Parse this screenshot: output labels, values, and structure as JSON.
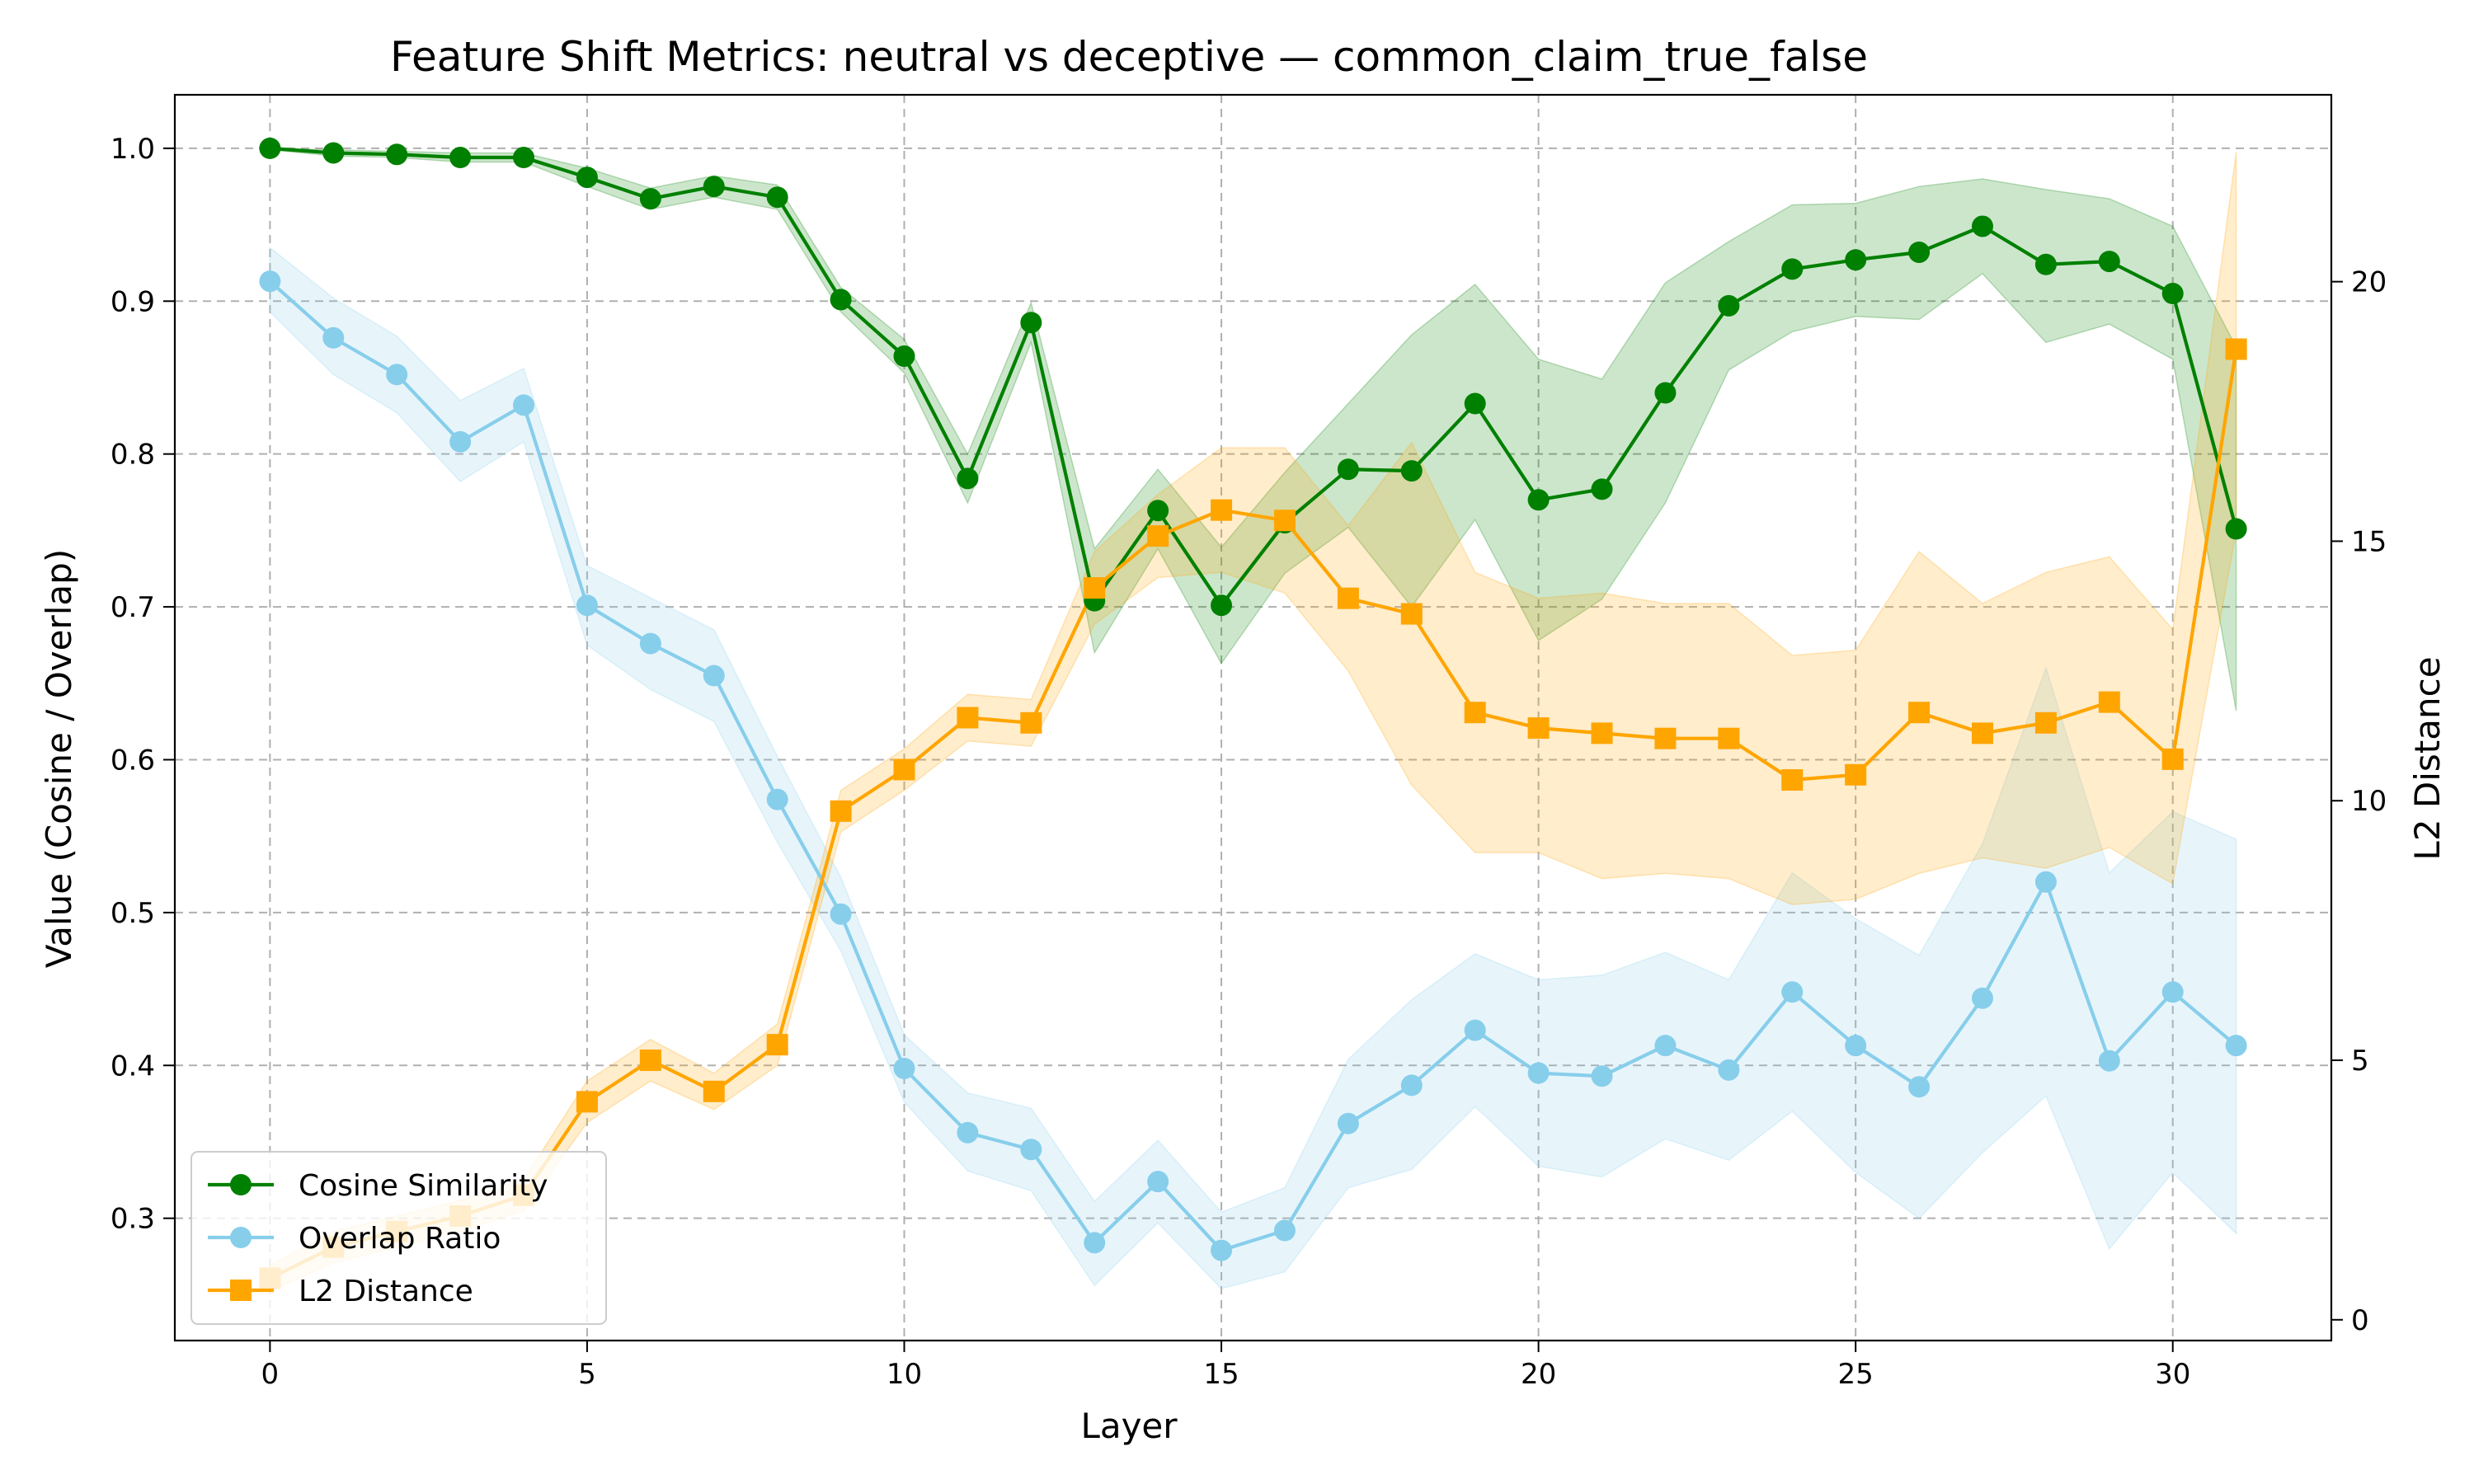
{
  "chart_data": {
    "type": "line",
    "title": "Feature Shift Metrics: neutral vs deceptive — common_claim_true_false",
    "xlabel": "Layer",
    "ylabel_left": "Value (Cosine / Overlap)",
    "ylabel_right": "L2 Distance",
    "xlim": [
      -1.5,
      32.5
    ],
    "ylim_left": [
      0.22,
      1.035
    ],
    "ylim_right": [
      -0.4,
      23.6
    ],
    "x_ticks": [
      0,
      5,
      10,
      15,
      20,
      25,
      30
    ],
    "y_ticks_left": [
      0.3,
      0.4,
      0.5,
      0.6,
      0.7,
      0.8,
      0.9,
      1.0
    ],
    "y_ticks_right": [
      0,
      5,
      10,
      15,
      20
    ],
    "grid": true,
    "legend_position": "lower-left",
    "x": [
      0,
      1,
      2,
      3,
      4,
      5,
      6,
      7,
      8,
      9,
      10,
      11,
      12,
      13,
      14,
      15,
      16,
      17,
      18,
      19,
      20,
      21,
      22,
      23,
      24,
      25,
      26,
      27,
      28,
      29,
      30,
      31
    ],
    "series": [
      {
        "name": "Cosine Similarity",
        "axis": "left",
        "color": "#008000",
        "marker": "circle",
        "values": [
          1.0,
          0.997,
          0.996,
          0.994,
          0.994,
          0.981,
          0.967,
          0.975,
          0.968,
          0.901,
          0.864,
          0.784,
          0.886,
          0.704,
          0.763,
          0.701,
          0.755,
          0.79,
          0.789,
          0.833,
          0.77,
          0.777,
          0.84,
          0.897,
          0.921,
          0.927,
          0.932,
          0.949,
          0.924,
          0.926,
          0.905,
          0.751
        ],
        "lower": [
          0.999,
          0.995,
          0.994,
          0.991,
          0.991,
          0.975,
          0.96,
          0.968,
          0.96,
          0.893,
          0.853,
          0.768,
          0.873,
          0.67,
          0.738,
          0.663,
          0.722,
          0.752,
          0.7,
          0.757,
          0.678,
          0.705,
          0.768,
          0.855,
          0.88,
          0.89,
          0.888,
          0.918,
          0.873,
          0.885,
          0.862,
          0.632
        ],
        "upper": [
          1.0,
          0.999,
          0.998,
          0.997,
          0.997,
          0.987,
          0.974,
          0.982,
          0.976,
          0.909,
          0.875,
          0.8,
          0.899,
          0.738,
          0.79,
          0.739,
          0.788,
          0.833,
          0.878,
          0.911,
          0.862,
          0.849,
          0.912,
          0.939,
          0.963,
          0.964,
          0.975,
          0.98,
          0.973,
          0.967,
          0.949,
          0.87
        ]
      },
      {
        "name": "Overlap Ratio",
        "axis": "left",
        "color": "#87CEEB",
        "marker": "circle",
        "values": [
          0.913,
          0.876,
          0.852,
          0.808,
          0.832,
          0.701,
          0.676,
          0.655,
          0.574,
          0.499,
          0.398,
          0.356,
          0.345,
          0.284,
          0.324,
          0.279,
          0.292,
          0.362,
          0.387,
          0.423,
          0.395,
          0.393,
          0.413,
          0.397,
          0.448,
          0.413,
          0.386,
          0.444,
          0.52,
          0.403,
          0.448,
          0.413
        ],
        "lower": [
          0.893,
          0.852,
          0.827,
          0.782,
          0.808,
          0.675,
          0.646,
          0.625,
          0.546,
          0.475,
          0.376,
          0.331,
          0.318,
          0.256,
          0.297,
          0.254,
          0.265,
          0.32,
          0.332,
          0.373,
          0.334,
          0.327,
          0.352,
          0.338,
          0.37,
          0.33,
          0.3,
          0.343,
          0.38,
          0.28,
          0.33,
          0.29
        ],
        "upper": [
          0.935,
          0.902,
          0.877,
          0.835,
          0.856,
          0.727,
          0.706,
          0.685,
          0.602,
          0.523,
          0.42,
          0.382,
          0.372,
          0.311,
          0.351,
          0.304,
          0.32,
          0.404,
          0.443,
          0.473,
          0.456,
          0.459,
          0.474,
          0.456,
          0.526,
          0.496,
          0.472,
          0.545,
          0.66,
          0.526,
          0.566,
          0.548
        ]
      },
      {
        "name": "L2 Distance",
        "axis": "right",
        "color": "#FFA500",
        "marker": "square",
        "values": [
          0.8,
          1.4,
          1.7,
          2.0,
          2.4,
          4.2,
          5.0,
          4.4,
          5.3,
          9.8,
          10.6,
          11.6,
          11.5,
          14.1,
          15.1,
          15.6,
          15.4,
          13.9,
          13.6,
          11.7,
          11.4,
          11.3,
          11.2,
          11.2,
          10.4,
          10.5,
          11.7,
          11.3,
          11.5,
          11.9,
          10.8,
          18.7
        ],
        "lower": [
          0.55,
          1.1,
          1.4,
          1.7,
          2.1,
          3.8,
          4.6,
          4.05,
          4.9,
          9.4,
          10.2,
          11.15,
          11.05,
          13.4,
          14.3,
          14.4,
          14.0,
          12.5,
          10.3,
          9.0,
          9.0,
          8.5,
          8.6,
          8.5,
          8.0,
          8.1,
          8.6,
          8.9,
          8.7,
          9.1,
          8.4,
          15.2
        ],
        "upper": [
          1.05,
          1.7,
          2.0,
          2.3,
          2.7,
          4.6,
          5.4,
          4.75,
          5.7,
          10.2,
          11.0,
          12.05,
          11.95,
          14.8,
          15.9,
          16.8,
          16.8,
          15.3,
          16.9,
          14.4,
          13.9,
          14.0,
          13.8,
          13.8,
          12.8,
          12.9,
          14.8,
          13.8,
          14.4,
          14.7,
          13.3,
          22.5
        ]
      }
    ]
  }
}
